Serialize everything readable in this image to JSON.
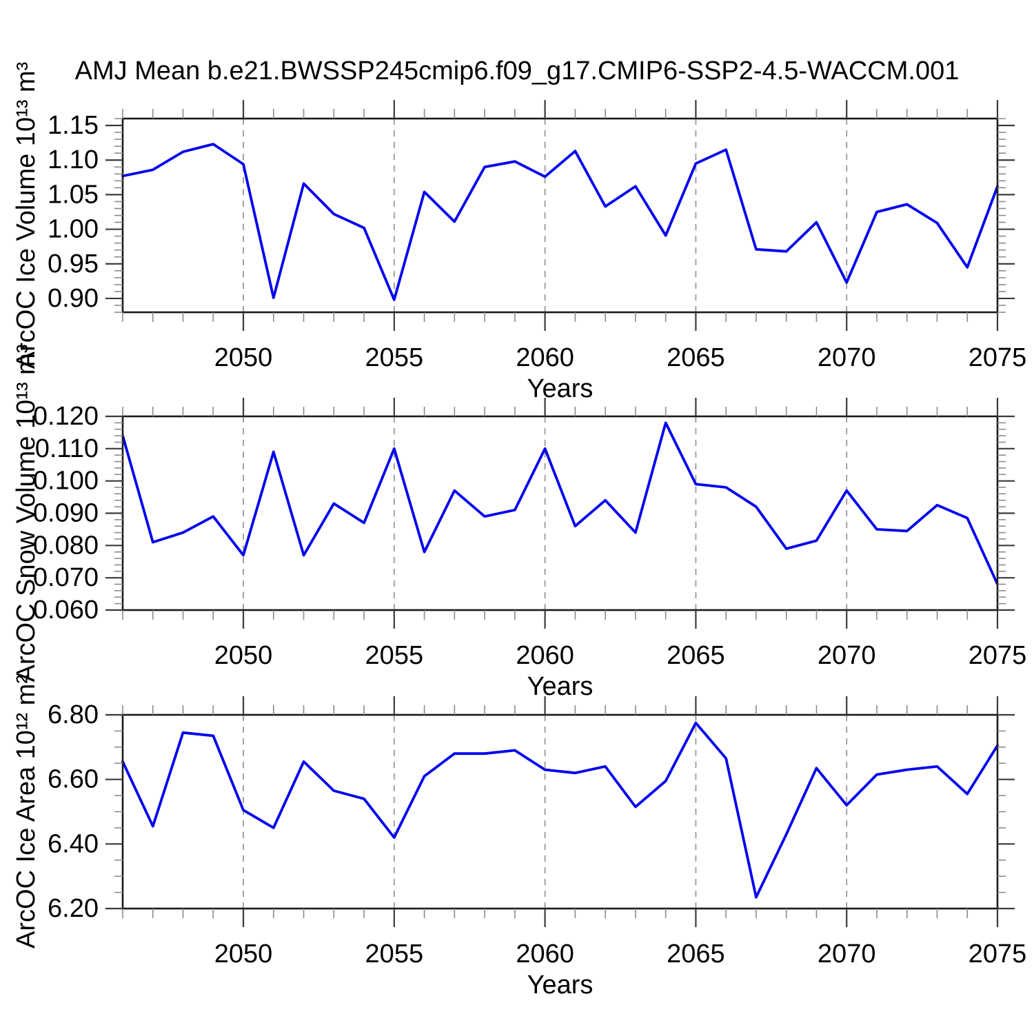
{
  "title": "AMJ Mean b.e21.BWSSP245cmip6.f09_g17.CMIP6-SSP2-4.5-WACCM.001",
  "colors": {
    "line": "#0000ee",
    "grid": "#999999",
    "border": "#1a1a1a",
    "tick_major": "#3a3a3a",
    "tick_minor": "#8a8a8a",
    "background": "#ffffff"
  },
  "chart_data": [
    {
      "type": "line",
      "ylabel": "ArcOC Ice Volume 10¹³ m³",
      "xlabel": "Years",
      "x": [
        2046,
        2047,
        2048,
        2049,
        2050,
        2051,
        2052,
        2053,
        2054,
        2055,
        2056,
        2057,
        2058,
        2059,
        2060,
        2061,
        2062,
        2063,
        2064,
        2065,
        2066,
        2067,
        2068,
        2069,
        2070,
        2071,
        2072,
        2073,
        2074,
        2075
      ],
      "values": [
        1.077,
        1.086,
        1.112,
        1.123,
        1.094,
        0.901,
        1.066,
        1.022,
        1.002,
        0.898,
        1.054,
        1.011,
        1.09,
        1.098,
        1.076,
        1.113,
        1.033,
        1.062,
        0.991,
        1.095,
        1.115,
        0.971,
        0.968,
        1.01,
        0.923,
        1.025,
        1.036,
        1.009,
        0.945,
        1.062
      ],
      "xlim": [
        2046,
        2075
      ],
      "ylim": [
        0.88,
        1.16
      ],
      "ytick_values": [
        0.9,
        0.95,
        1.0,
        1.05,
        1.1,
        1.15
      ],
      "ytick_labels": [
        "0.90",
        "0.95",
        "1.00",
        "1.05",
        "1.10",
        "1.15"
      ],
      "yminor_step": 0.01,
      "xtick_values": [
        2050,
        2055,
        2060,
        2065,
        2070,
        2075
      ],
      "xtick_labels": [
        "2050",
        "2055",
        "2060",
        "2065",
        "2070",
        "2075"
      ],
      "xminor_step": 1,
      "x_gridlines": [
        2050,
        2055,
        2060,
        2065,
        2070
      ],
      "grid_style": "dashed-vertical"
    },
    {
      "type": "line",
      "ylabel": "ArcOC Snow Volume 10¹³ m³",
      "xlabel": "Years",
      "x": [
        2046,
        2047,
        2048,
        2049,
        2050,
        2051,
        2052,
        2053,
        2054,
        2055,
        2056,
        2057,
        2058,
        2059,
        2060,
        2061,
        2062,
        2063,
        2064,
        2065,
        2066,
        2067,
        2068,
        2069,
        2070,
        2071,
        2072,
        2073,
        2074,
        2075
      ],
      "values": [
        0.114,
        0.081,
        0.084,
        0.089,
        0.077,
        0.109,
        0.077,
        0.093,
        0.087,
        0.11,
        0.078,
        0.097,
        0.089,
        0.091,
        0.11,
        0.086,
        0.094,
        0.084,
        0.118,
        0.099,
        0.098,
        0.092,
        0.079,
        0.0815,
        0.097,
        0.085,
        0.0845,
        0.0925,
        0.0885,
        0.068
      ],
      "xlim": [
        2046,
        2075
      ],
      "ylim": [
        0.06,
        0.12
      ],
      "ytick_values": [
        0.06,
        0.07,
        0.08,
        0.09,
        0.1,
        0.11,
        0.12
      ],
      "ytick_labels": [
        "0.060",
        "0.070",
        "0.080",
        "0.090",
        "0.100",
        "0.110",
        "0.120"
      ],
      "yminor_step": 0.002,
      "xtick_values": [
        2050,
        2055,
        2060,
        2065,
        2070,
        2075
      ],
      "xtick_labels": [
        "2050",
        "2055",
        "2060",
        "2065",
        "2070",
        "2075"
      ],
      "xminor_step": 1,
      "x_gridlines": [
        2050,
        2055,
        2060,
        2065,
        2070
      ],
      "grid_style": "dashed-vertical"
    },
    {
      "type": "line",
      "ylabel": "ArcOC Ice Area 10¹² m²",
      "xlabel": "Years",
      "x": [
        2046,
        2047,
        2048,
        2049,
        2050,
        2051,
        2052,
        2053,
        2054,
        2055,
        2056,
        2057,
        2058,
        2059,
        2060,
        2061,
        2062,
        2063,
        2064,
        2065,
        2066,
        2067,
        2068,
        2069,
        2070,
        2071,
        2072,
        2073,
        2074,
        2075
      ],
      "values": [
        6.655,
        6.455,
        6.745,
        6.735,
        6.505,
        6.45,
        6.655,
        6.565,
        6.54,
        6.42,
        6.61,
        6.68,
        6.68,
        6.69,
        6.63,
        6.62,
        6.64,
        6.515,
        6.595,
        6.775,
        6.665,
        6.235,
        6.43,
        6.635,
        6.52,
        6.615,
        6.63,
        6.64,
        6.555,
        6.705
      ],
      "xlim": [
        2046,
        2075
      ],
      "ylim": [
        6.2,
        6.8
      ],
      "ytick_values": [
        6.2,
        6.4,
        6.6,
        6.8
      ],
      "ytick_labels": [
        "6.20",
        "6.40",
        "6.60",
        "6.80"
      ],
      "yminor_step": 0.05,
      "xtick_values": [
        2050,
        2055,
        2060,
        2065,
        2070,
        2075
      ],
      "xtick_labels": [
        "2050",
        "2055",
        "2060",
        "2065",
        "2070",
        "2075"
      ],
      "xminor_step": 1,
      "x_gridlines": [
        2050,
        2055,
        2060,
        2065,
        2070
      ],
      "grid_style": "dashed-vertical"
    }
  ]
}
